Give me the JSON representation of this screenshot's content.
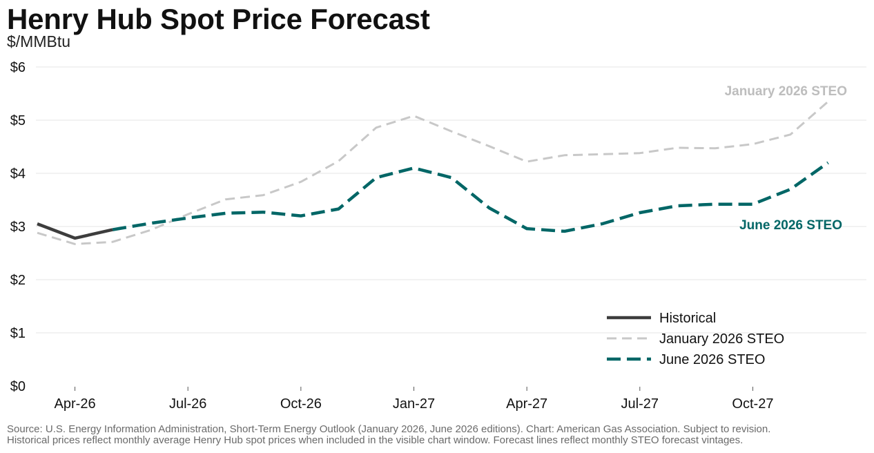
{
  "title": "Henry Hub Spot Price Forecast",
  "subtitle": "$/MMBtu",
  "source_lines": [
    "Source: U.S. Energy Information Administration, Short-Term Energy Outlook (January 2026, June 2026 editions). Chart: American Gas Association. Subject to revision.",
    "Historical prices reflect monthly average Henry Hub spot prices when included in the visible chart window. Forecast lines reflect monthly STEO forecast vintages."
  ],
  "colors": {
    "historical": "#3d3d3d",
    "january": "#c8c8c8",
    "june": "#006666",
    "grid": "#e6e6e6",
    "january_label": "#bdbdbd",
    "june_label": "#006666"
  },
  "chart_data": {
    "type": "line",
    "x": [
      "2026-03",
      "2026-04",
      "2026-05",
      "2026-06",
      "2026-07",
      "2026-08",
      "2026-09",
      "2026-10",
      "2026-11",
      "2026-12",
      "2027-01",
      "2027-02",
      "2027-03",
      "2027-04",
      "2027-05",
      "2027-06",
      "2027-07",
      "2027-08",
      "2027-09",
      "2027-10",
      "2027-11",
      "2027-12"
    ],
    "x_ticks": [
      {
        "x": "2026-04",
        "label": "Apr-26"
      },
      {
        "x": "2026-07",
        "label": "Jul-26"
      },
      {
        "x": "2026-10",
        "label": "Oct-26"
      },
      {
        "x": "2027-01",
        "label": "Jan-27"
      },
      {
        "x": "2027-04",
        "label": "Apr-27"
      },
      {
        "x": "2027-07",
        "label": "Jul-27"
      },
      {
        "x": "2027-10",
        "label": "Oct-27"
      }
    ],
    "y_ticks": [
      {
        "value": 0,
        "label": "$0"
      },
      {
        "value": 1,
        "label": "$1"
      },
      {
        "value": 2,
        "label": "$2"
      },
      {
        "value": 3,
        "label": "$3"
      },
      {
        "value": 4,
        "label": "$4"
      },
      {
        "value": 5,
        "label": "$5"
      },
      {
        "value": 6,
        "label": "$6"
      }
    ],
    "ylim": [
      0,
      6
    ],
    "grid": true,
    "legend_position": "bottom-right",
    "series": [
      {
        "key": "historical",
        "name": "Historical",
        "style": "solid",
        "values": [
          3.05,
          2.78,
          2.94,
          null,
          null,
          null,
          null,
          null,
          null,
          null,
          null,
          null,
          null,
          null,
          null,
          null,
          null,
          null,
          null,
          null,
          null,
          null
        ]
      },
      {
        "key": "january",
        "name": "January 2026 STEO",
        "style": "dashed",
        "values": [
          2.88,
          2.67,
          2.71,
          2.93,
          3.23,
          3.51,
          3.59,
          3.84,
          4.23,
          4.86,
          5.08,
          4.79,
          4.51,
          4.22,
          4.34,
          4.36,
          4.38,
          4.48,
          4.47,
          4.55,
          4.73,
          5.35
        ]
      },
      {
        "key": "june",
        "name": "June 2026 STEO",
        "style": "dashed",
        "values": [
          null,
          null,
          2.94,
          3.06,
          3.16,
          3.25,
          3.27,
          3.2,
          3.33,
          3.92,
          4.1,
          3.92,
          3.35,
          2.96,
          2.91,
          3.05,
          3.26,
          3.39,
          3.42,
          3.42,
          3.7,
          4.2
        ]
      }
    ],
    "annotations": [
      {
        "series": "january",
        "text": "January 2026 STEO"
      },
      {
        "series": "june",
        "text": "June 2026 STEO"
      }
    ]
  }
}
